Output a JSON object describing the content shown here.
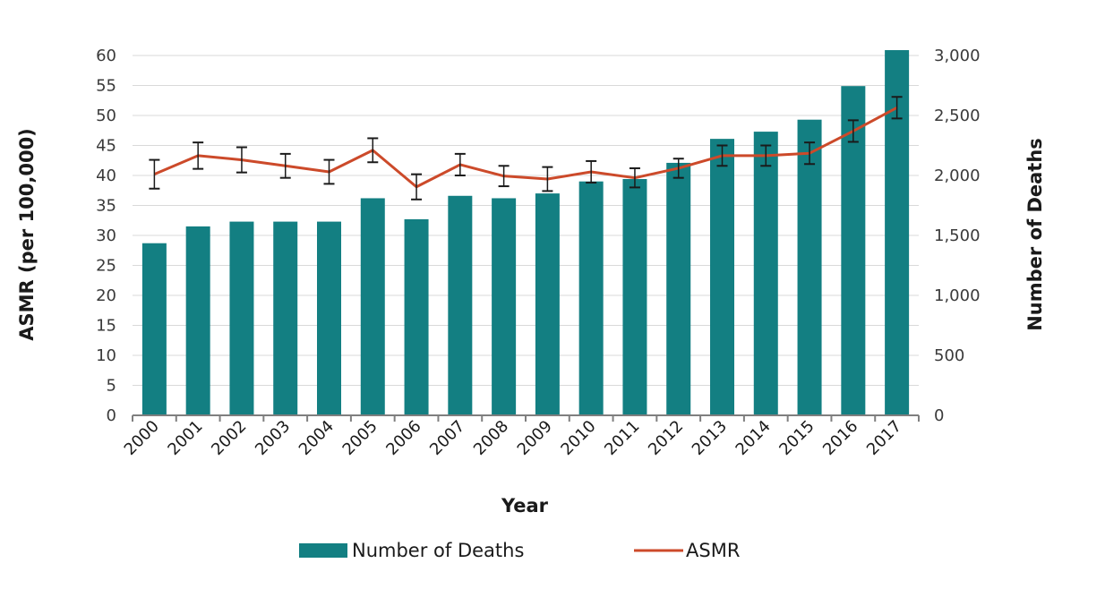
{
  "chart_data": {
    "type": "bar+line",
    "title": "",
    "xlabel": "Year",
    "ylabel_left": "ASMR (per 100,000)",
    "ylabel_right": "Number of Deaths",
    "categories": [
      "2000",
      "2001",
      "2002",
      "2003",
      "2004",
      "2005",
      "2006",
      "2007",
      "2008",
      "2009",
      "2010",
      "2011",
      "2012",
      "2013",
      "2014",
      "2015",
      "2016",
      "2017"
    ],
    "left_ticks": [
      "0",
      "5",
      "10",
      "15",
      "20",
      "25",
      "30",
      "35",
      "40",
      "45",
      "50",
      "55",
      "60"
    ],
    "right_ticks": [
      "0",
      "500",
      "1,000",
      "1,500",
      "2,000",
      "2,500",
      "3,000"
    ],
    "ylim_left": [
      0,
      60
    ],
    "ylim_right": [
      0,
      3000
    ],
    "grid": true,
    "legend_position": "bottom",
    "series": [
      {
        "name": "Number of Deaths",
        "type": "bar",
        "axis": "right",
        "color": "#137f82",
        "values": [
          1435,
          1575,
          1615,
          1615,
          1615,
          1810,
          1635,
          1830,
          1810,
          1850,
          1950,
          1970,
          2105,
          2305,
          2365,
          2465,
          2745,
          3045
        ]
      },
      {
        "name": "ASMR",
        "type": "line",
        "axis": "left",
        "color": "#cc4a2a",
        "values": [
          40.2,
          43.3,
          42.6,
          41.6,
          40.6,
          44.2,
          38.1,
          41.8,
          39.9,
          39.4,
          40.6,
          39.6,
          41.2,
          43.3,
          43.3,
          43.7,
          47.4,
          51.3
        ],
        "error": [
          2.4,
          2.2,
          2.1,
          2.0,
          2.0,
          2.0,
          2.1,
          1.8,
          1.7,
          2.0,
          1.8,
          1.6,
          1.6,
          1.7,
          1.7,
          1.8,
          1.8,
          1.8
        ],
        "error_color": "#1a1a1a"
      }
    ]
  }
}
